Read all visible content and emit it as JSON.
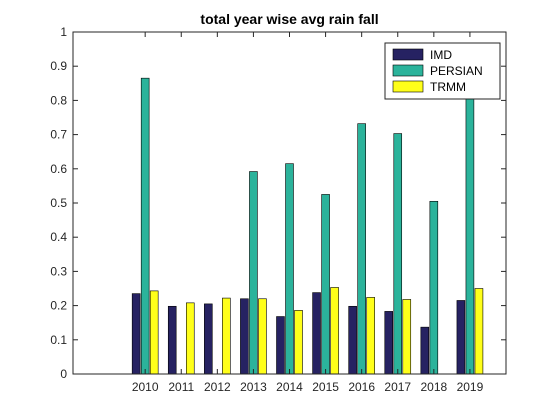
{
  "chart_data": {
    "type": "bar",
    "title": "total year wise avg rain fall",
    "xlabel": "",
    "ylabel": "",
    "categories": [
      "2010",
      "2011",
      "2012",
      "2013",
      "2014",
      "2015",
      "2016",
      "2017",
      "2018",
      "2019"
    ],
    "x_range": [
      2008,
      2020
    ],
    "ylim": [
      0,
      1
    ],
    "yticks": [
      "0",
      "0.1",
      "0.2",
      "0.3",
      "0.4",
      "0.5",
      "0.6",
      "0.7",
      "0.8",
      "0.9",
      "1"
    ],
    "grid": false,
    "legend_position": "top-right",
    "series": [
      {
        "name": "IMD",
        "color": "#262262",
        "values": [
          0.235,
          0.198,
          0.205,
          0.22,
          0.168,
          0.238,
          0.198,
          0.183,
          0.137,
          0.215
        ]
      },
      {
        "name": "PERSIAN",
        "color": "#2bb39b",
        "values": [
          0.865,
          0,
          0,
          0.592,
          0.615,
          0.525,
          0.732,
          0.703,
          0.505,
          0.83
        ]
      },
      {
        "name": "TRMM",
        "color": "#ffff1a",
        "values": [
          0.243,
          0.208,
          0.222,
          0.22,
          0.186,
          0.253,
          0.224,
          0.218,
          0,
          0.25
        ]
      }
    ]
  }
}
